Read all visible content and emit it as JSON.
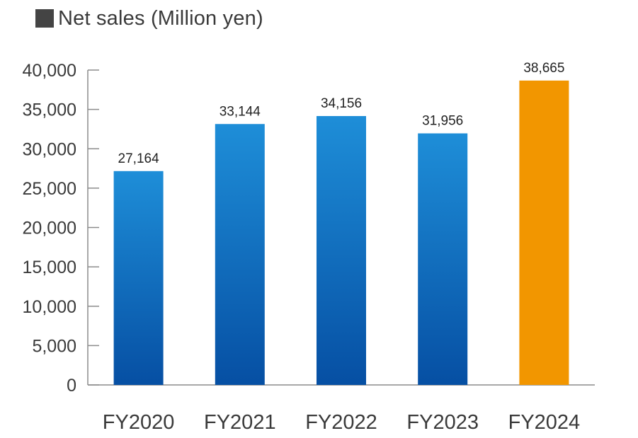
{
  "chart_data": {
    "type": "bar",
    "title": "Net sales (Million yen)",
    "legend_marker_color": "#444444",
    "categories": [
      "FY2020",
      "FY2021",
      "FY2022",
      "FY2023",
      "FY2024"
    ],
    "values": [
      27164,
      33144,
      34156,
      31956,
      38665
    ],
    "value_labels": [
      "27,164",
      "33,144",
      "34,156",
      "31,956",
      "38,665"
    ],
    "ylim": [
      0,
      40000
    ],
    "y_ticks": [
      0,
      5000,
      10000,
      15000,
      20000,
      25000,
      30000,
      35000,
      40000
    ],
    "y_tick_labels": [
      "0",
      "5,000",
      "10,000",
      "15,000",
      "20,000",
      "25,000",
      "30,000",
      "35,000",
      "40,000"
    ],
    "xlabel": "",
    "ylabel": "",
    "grid": false,
    "bar_colors": {
      "default_top": "#1e8ed8",
      "default_bottom": "#064fa3",
      "highlight": "#f29600"
    },
    "highlight_index": 4,
    "axis_color": "#8c8c8c"
  }
}
